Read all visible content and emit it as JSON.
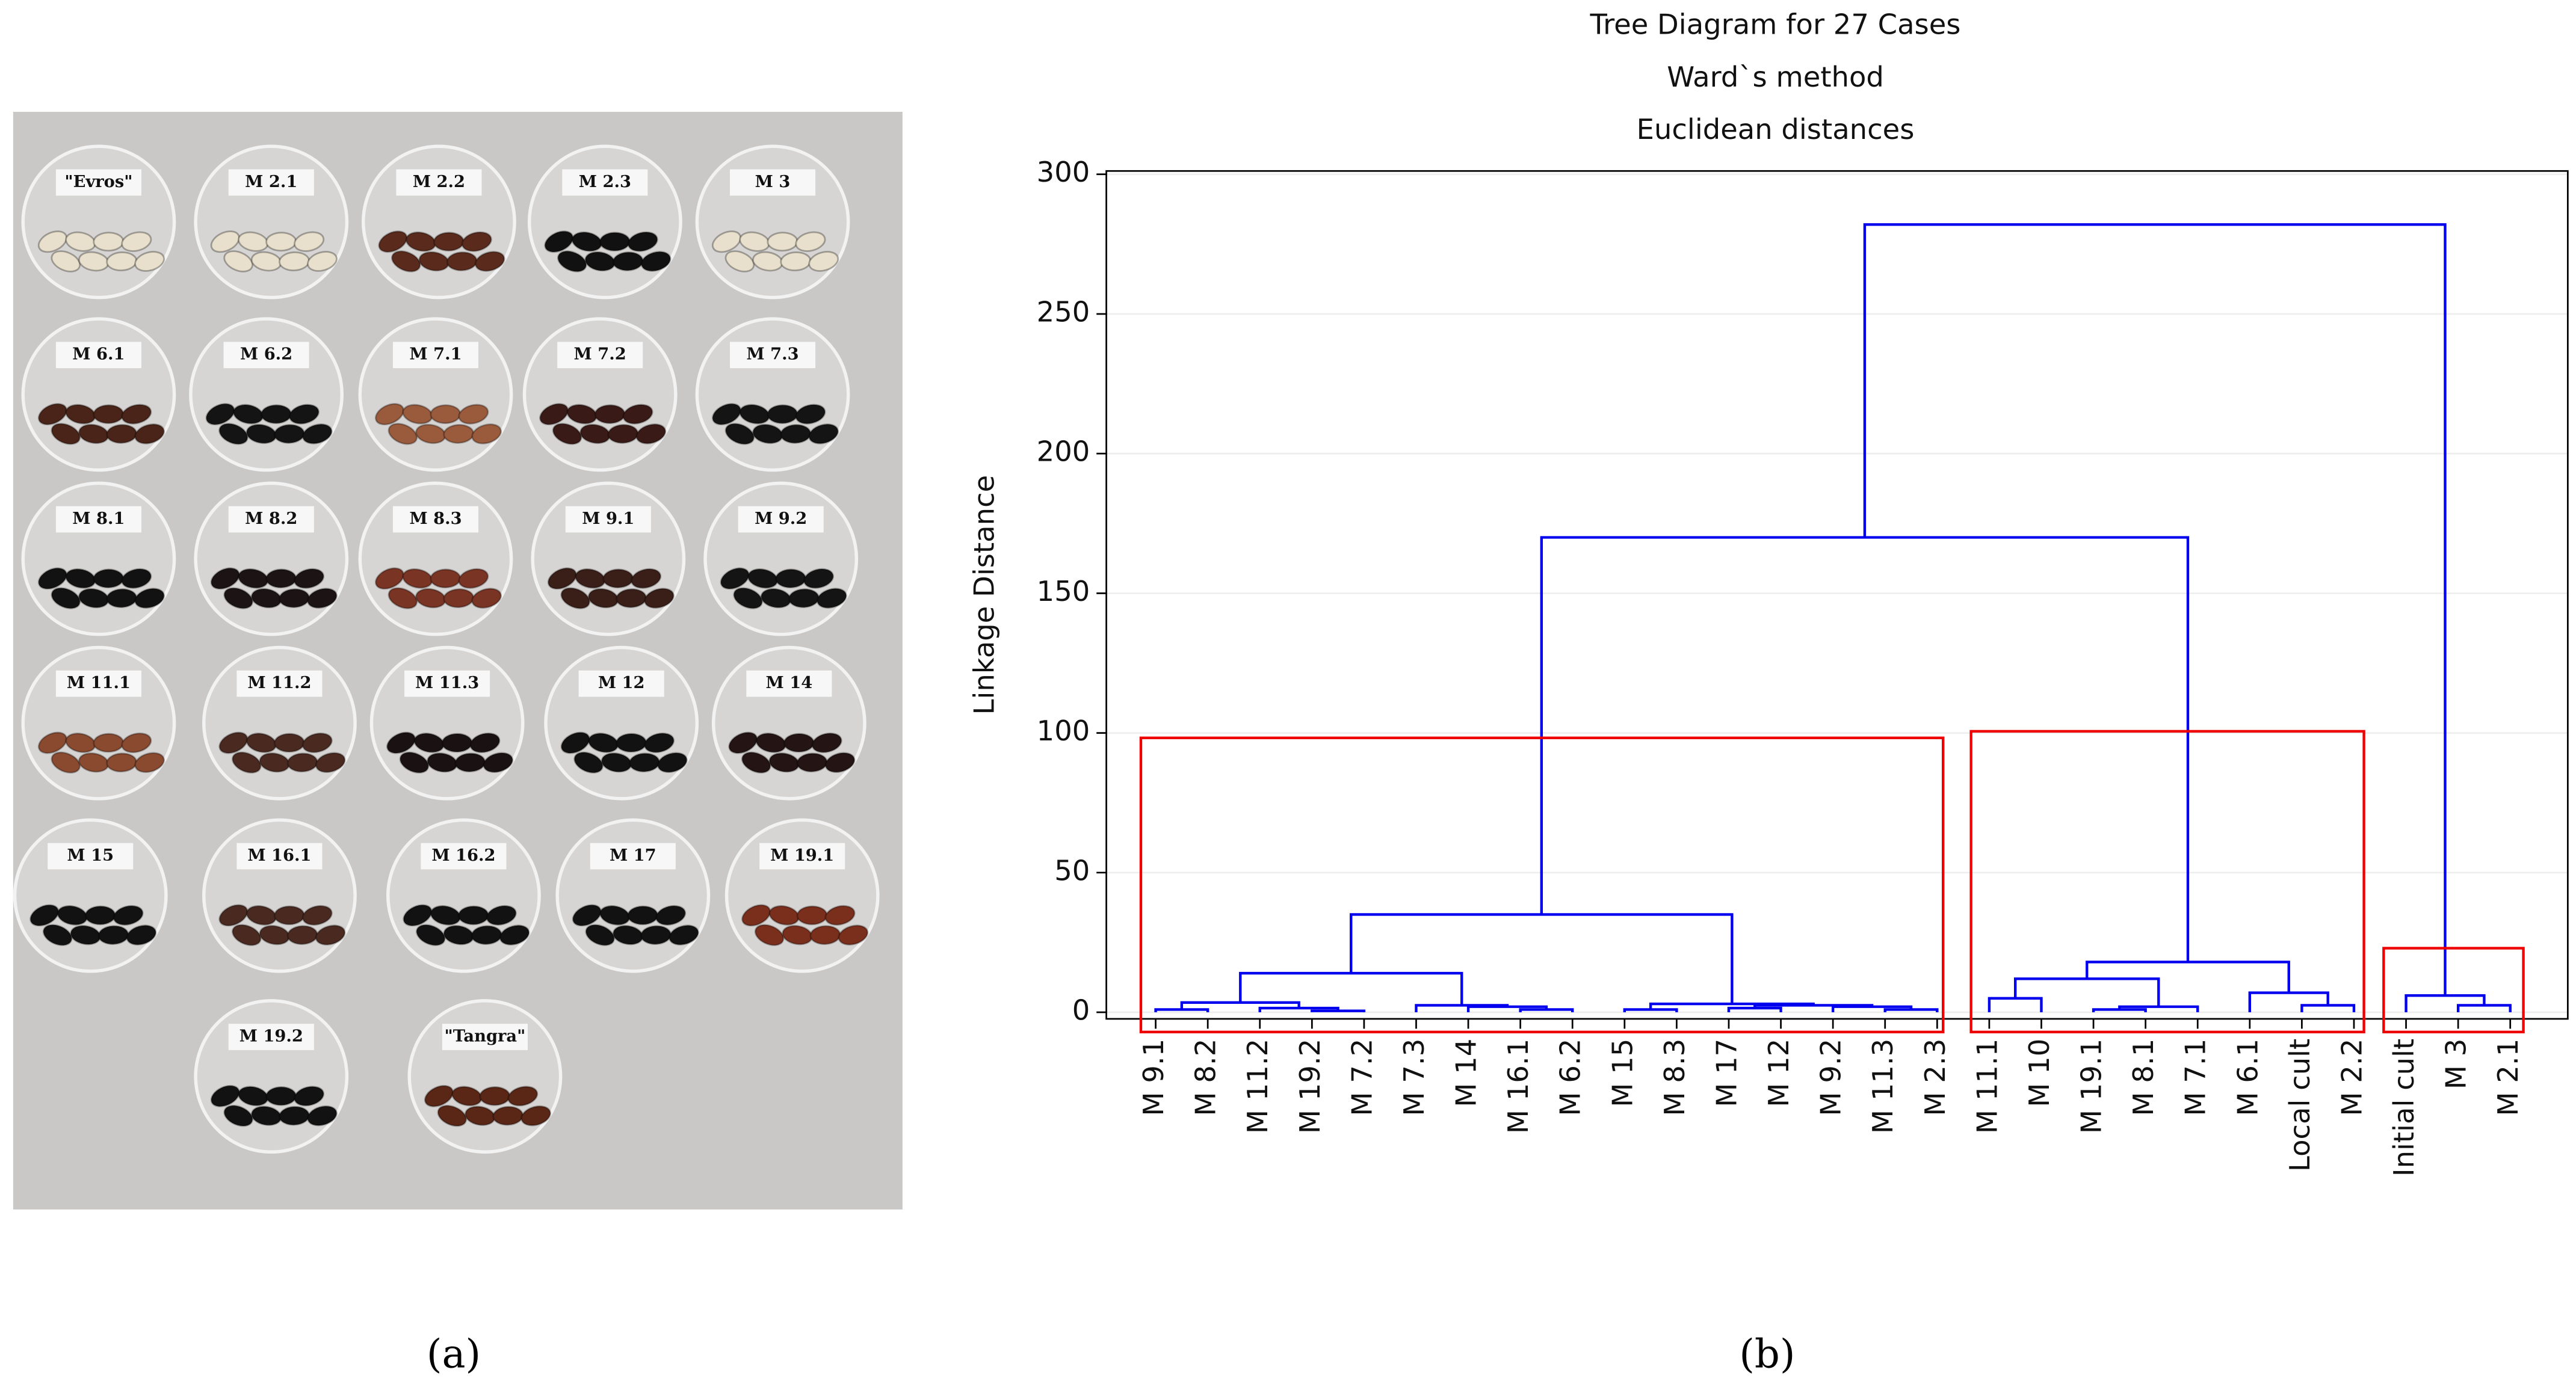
{
  "photo": {
    "panel_label": "(a)",
    "dishes": [
      "\"Evros\"",
      "M 2.1",
      "M 2.2",
      "M 2.3",
      "M 3",
      "M 6.1",
      "M 6.2",
      "M 7.1",
      "M 7.2",
      "M 7.3",
      "M 8.1",
      "M 8.2",
      "M 8.3",
      "M 9.1",
      "M 9.2",
      "M 11.1",
      "M 11.2",
      "M 11.3",
      "M 12",
      "M 14",
      "M 15",
      "M 16.1",
      "M 16.2",
      "M 17",
      "M 19.1",
      "M 19.2",
      "\"Tangra\""
    ]
  },
  "chart_data": {
    "type": "dendrogram",
    "panel_label": "(b)",
    "title": [
      "Tree Diagram for 27 Cases",
      "Ward`s method",
      "Euclidean distances"
    ],
    "ylabel": "Linkage Distance",
    "leaves": [
      "M 9.1",
      "M 8.2",
      "M 11.2",
      "M 19.2",
      "M 7.2",
      "M 7.3",
      "M 14",
      "M 16.1",
      "M 6.2",
      "M 15",
      "M 8.3",
      "M 17",
      "M 12",
      "M 9.2",
      "M 11.3",
      "M 2.3",
      "M 11.1",
      "M 10",
      "M 19.1",
      "M 8.1",
      "M 7.1",
      "M 6.1",
      "Local cult",
      "M 2.2",
      "Initial cult",
      "M 3",
      "M 2.1"
    ],
    "merges": [
      [
        0,
        1,
        1
      ],
      [
        3,
        4,
        0.5
      ],
      [
        2,
        28,
        1.5
      ],
      [
        27,
        29,
        3.5
      ],
      [
        7,
        8,
        1
      ],
      [
        6,
        31,
        2
      ],
      [
        5,
        32,
        2.5
      ],
      [
        30,
        33,
        14
      ],
      [
        9,
        10,
        1
      ],
      [
        11,
        12,
        1.5
      ],
      [
        14,
        15,
        1
      ],
      [
        13,
        37,
        2
      ],
      [
        36,
        38,
        2.5
      ],
      [
        35,
        39,
        3
      ],
      [
        34,
        40,
        35
      ],
      [
        16,
        17,
        5
      ],
      [
        18,
        19,
        1
      ],
      [
        43,
        20,
        2
      ],
      [
        42,
        44,
        12
      ],
      [
        22,
        23,
        2.5
      ],
      [
        21,
        46,
        7
      ],
      [
        45,
        47,
        18
      ],
      [
        41,
        48,
        170
      ],
      [
        25,
        26,
        2.5
      ],
      [
        24,
        50,
        6
      ],
      [
        49,
        51,
        282
      ]
    ],
    "color": "#0000ee",
    "ylim": [
      0,
      300
    ],
    "yticks": [
      0,
      50,
      100,
      150,
      200,
      250,
      300
    ],
    "grid": true
  }
}
